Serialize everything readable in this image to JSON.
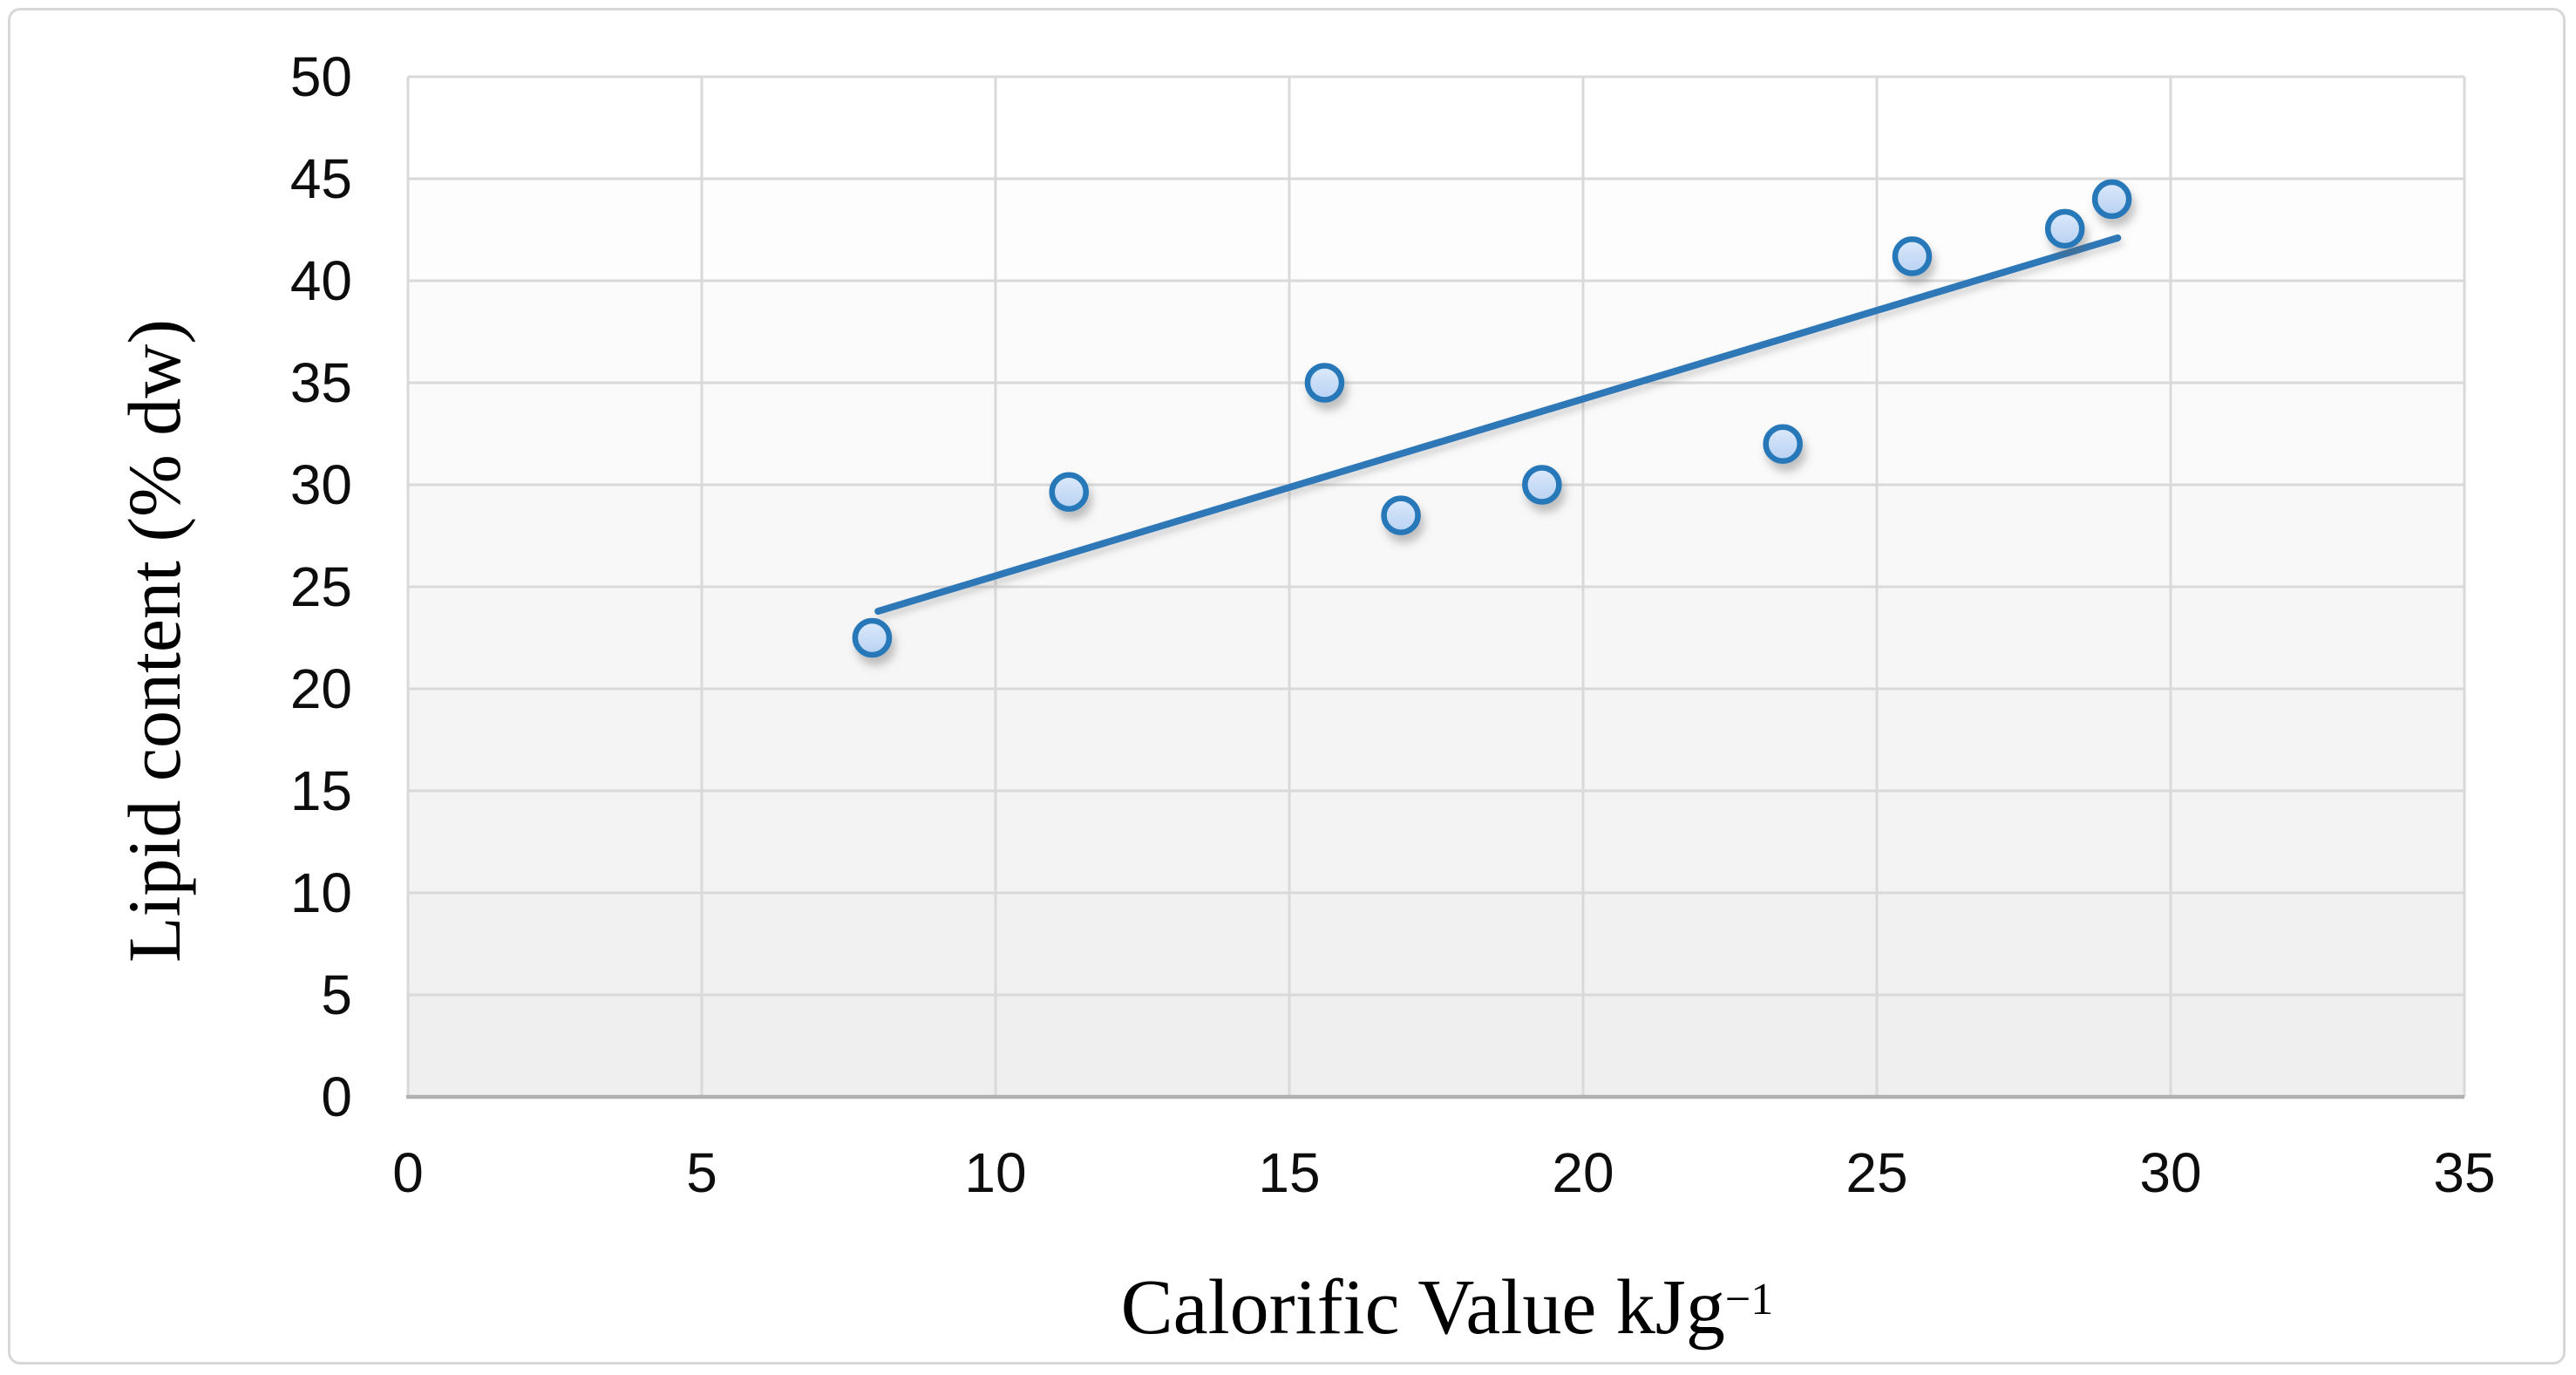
{
  "chart_data": {
    "type": "scatter",
    "title": "",
    "xlabel_main": "Calorific Value kJg",
    "xlabel_sup": "−1",
    "ylabel": "Lipid content (% dw)",
    "xlim": [
      0,
      35
    ],
    "ylim": [
      0,
      50
    ],
    "x_ticks": [
      0,
      5,
      10,
      15,
      20,
      25,
      30,
      35
    ],
    "y_ticks": [
      0,
      5,
      10,
      15,
      20,
      25,
      30,
      35,
      40,
      45,
      50
    ],
    "grid": true,
    "legend": "none",
    "points": [
      {
        "x": 7.9,
        "y": 22.5
      },
      {
        "x": 11.25,
        "y": 29.65
      },
      {
        "x": 15.6,
        "y": 35.0
      },
      {
        "x": 16.9,
        "y": 28.5
      },
      {
        "x": 19.3,
        "y": 30.0
      },
      {
        "x": 23.4,
        "y": 32.0
      },
      {
        "x": 25.6,
        "y": 41.2
      },
      {
        "x": 28.2,
        "y": 42.55
      },
      {
        "x": 29.0,
        "y": 44.0
      }
    ],
    "trendline": {
      "x1": 8.0,
      "y1": 23.8,
      "x2": 29.1,
      "y2": 42.1
    },
    "colors": {
      "marker_fill_top": "#dce9fb",
      "marker_fill_bottom": "#b7d1f2",
      "marker_stroke": "#2878b8",
      "trend_line": "#2e78b8",
      "gridline": "#d9d9d9",
      "axis_line": "#b0b0b0",
      "tick_text": "#0d0d0d",
      "title_text": "#000000",
      "plot_band_shade": "#000000",
      "chart_border": "#d8d8d8"
    }
  }
}
